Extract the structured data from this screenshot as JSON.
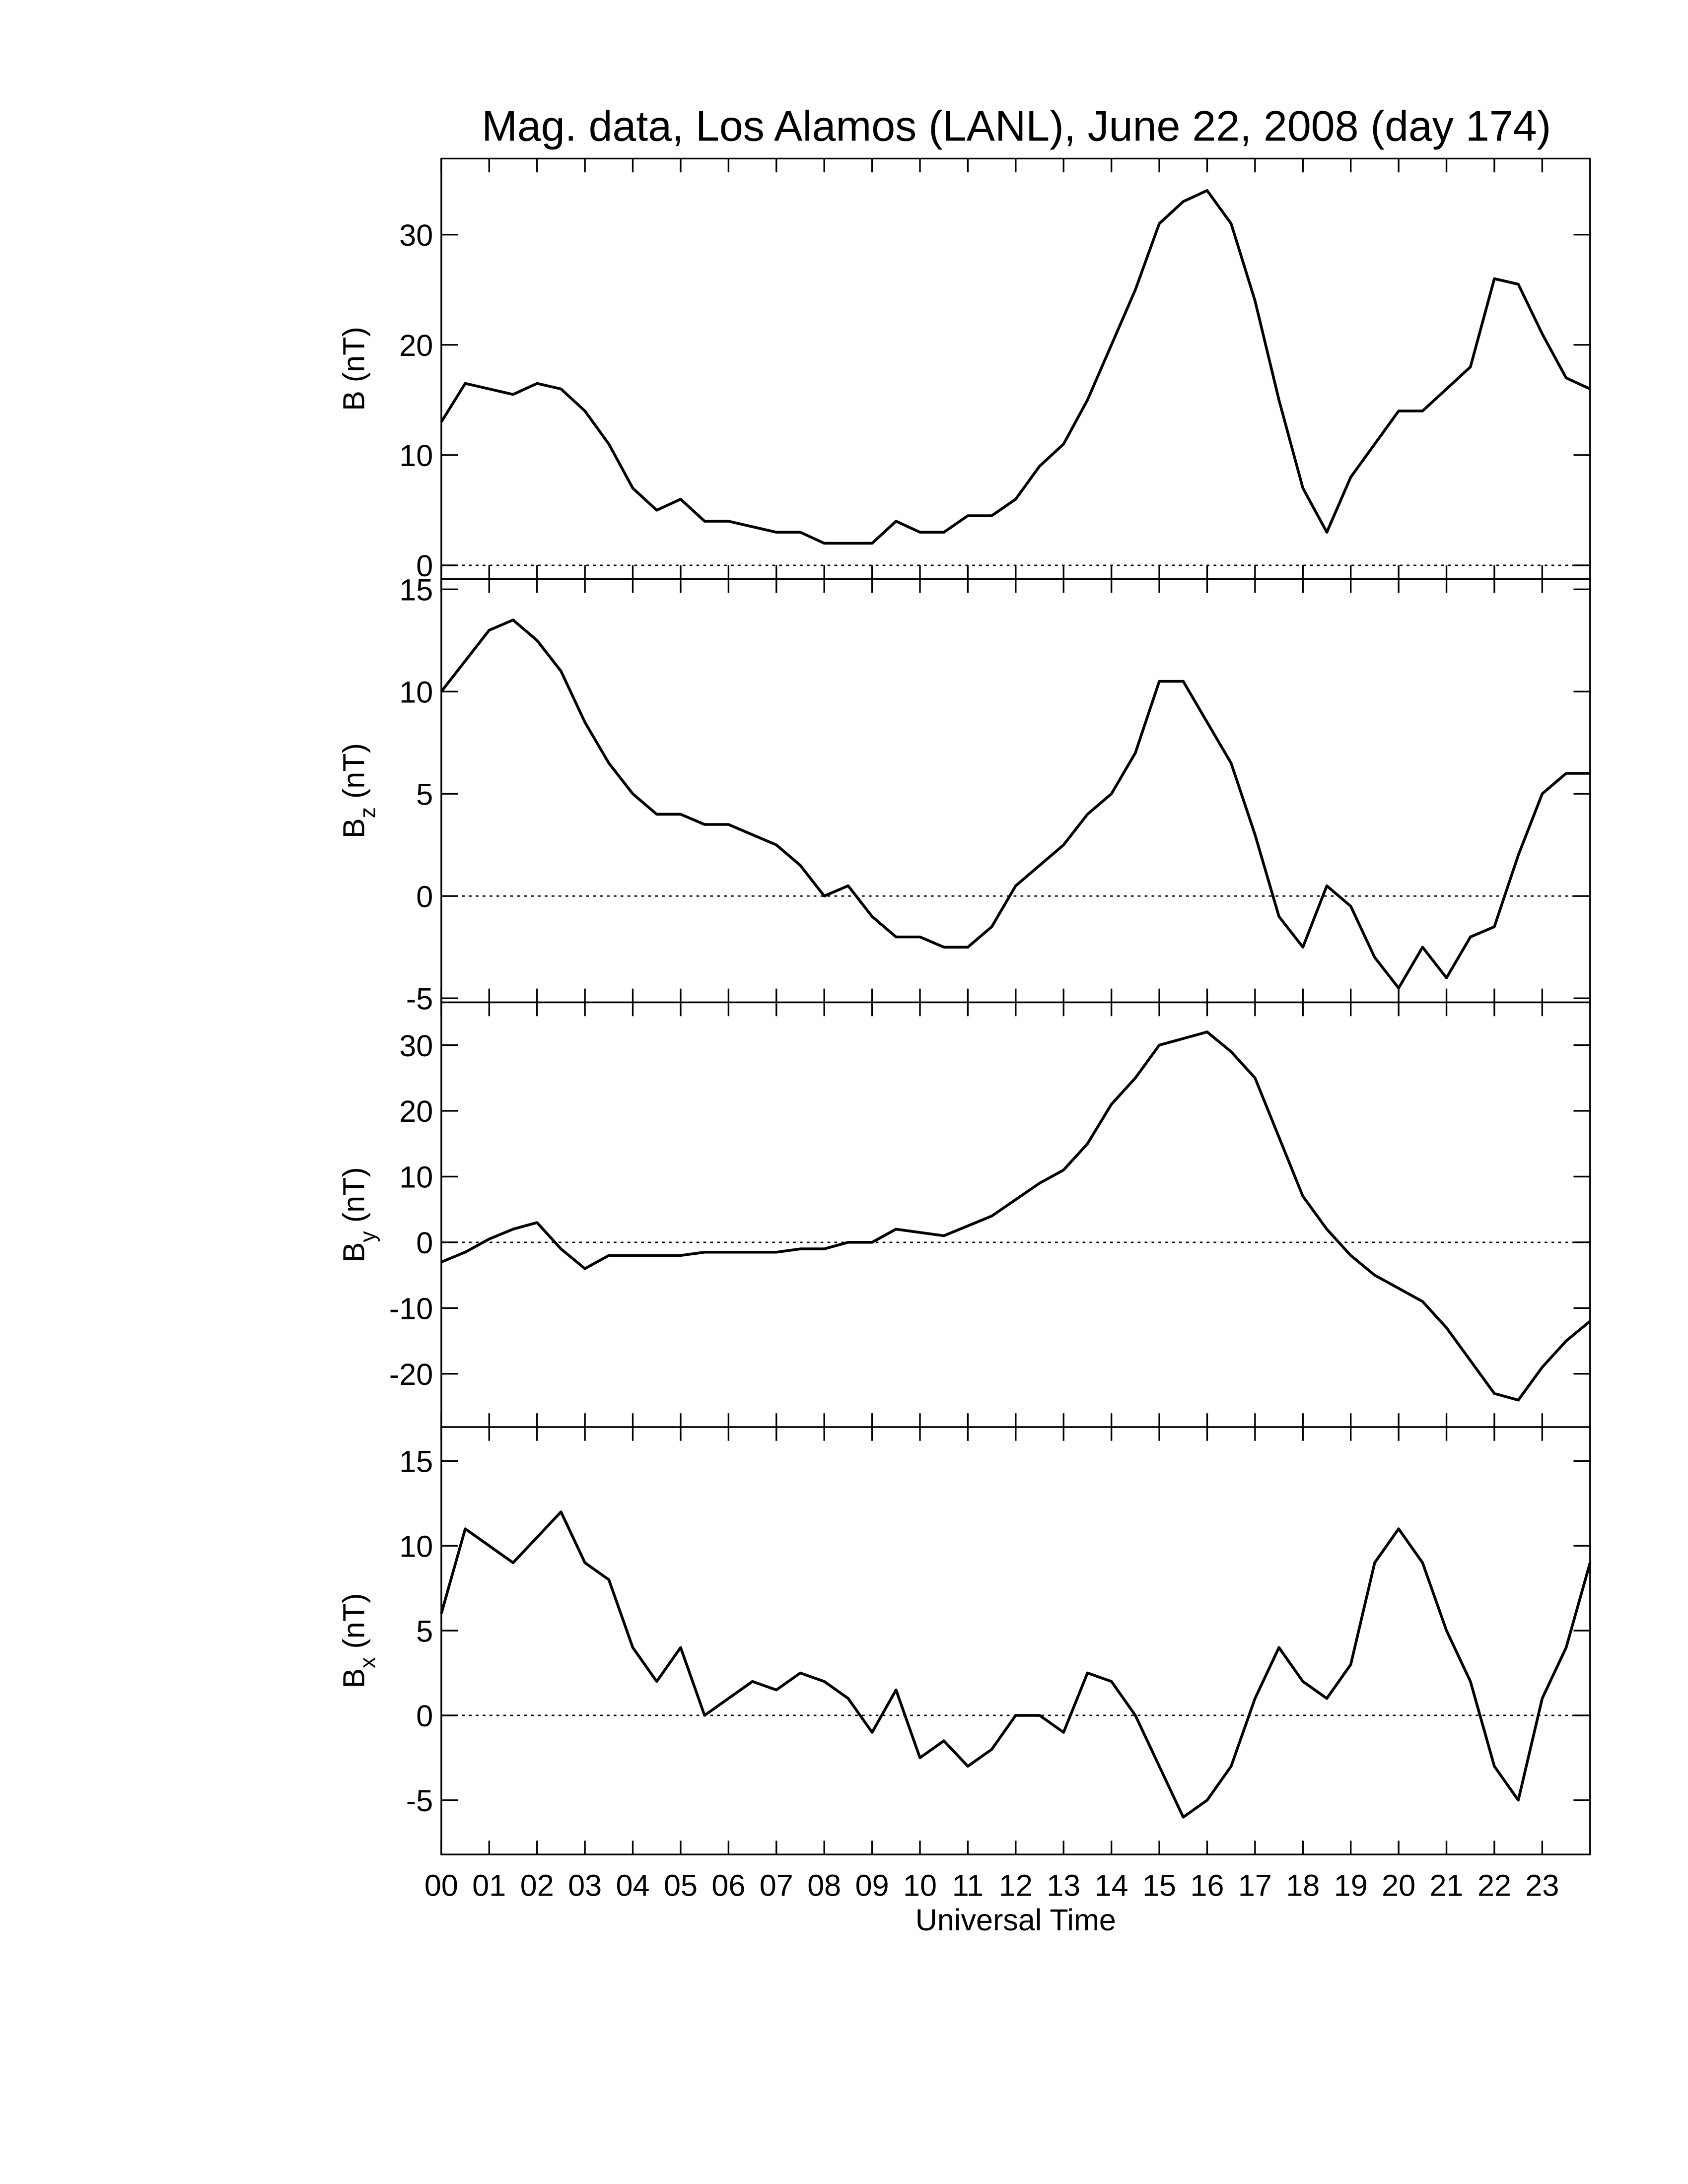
{
  "chart_data": [
    {
      "type": "line",
      "title": "Mag. data, Los Alamos (LANL), June 22, 2008 (day 174)",
      "ylabel": "B (nT)",
      "color": "#000000",
      "x": [
        0,
        0.5,
        1,
        1.5,
        2,
        2.5,
        3,
        3.5,
        4,
        4.5,
        5,
        5.5,
        6,
        6.5,
        7,
        7.5,
        8,
        8.5,
        9,
        9.5,
        10,
        10.5,
        11,
        11.5,
        12,
        12.5,
        13,
        13.5,
        14,
        14.5,
        15,
        15.5,
        16,
        16.5,
        17,
        17.5,
        18,
        18.5,
        19,
        19.5,
        20,
        20.5,
        21,
        21.5,
        22,
        22.5,
        23,
        23.5,
        24
      ],
      "values": [
        13,
        16.5,
        16,
        15.5,
        16.5,
        16,
        14,
        11,
        7,
        5,
        6,
        4,
        4,
        3.5,
        3,
        3,
        2,
        2,
        2,
        4,
        3,
        3,
        4.5,
        4.5,
        6,
        9,
        11,
        15,
        20,
        25,
        31,
        33,
        34,
        31,
        24,
        15,
        7,
        3,
        8,
        11,
        14,
        14,
        16,
        18,
        26,
        25.5,
        21,
        17,
        16
      ],
      "xlim": [
        0,
        24
      ],
      "ylim": [
        -1.25,
        36.9
      ],
      "yticks": [
        0,
        10,
        20,
        30
      ],
      "reference_line": 0
    },
    {
      "type": "line",
      "ylabel": {
        "symbol": "B",
        "subscript": "z",
        "unit": " (nT)"
      },
      "color": "#000000",
      "x": [
        0,
        0.5,
        1,
        1.5,
        2,
        2.5,
        3,
        3.5,
        4,
        4.5,
        5,
        5.5,
        6,
        6.5,
        7,
        7.5,
        8,
        8.5,
        9,
        9.5,
        10,
        10.5,
        11,
        11.5,
        12,
        12.5,
        13,
        13.5,
        14,
        14.5,
        15,
        15.5,
        16,
        16.5,
        17,
        17.5,
        18,
        18.5,
        19,
        19.5,
        20,
        20.5,
        21,
        21.5,
        22,
        22.5,
        23,
        23.5,
        24
      ],
      "values": [
        10,
        11.5,
        13,
        13.5,
        12.5,
        11,
        8.5,
        6.5,
        5,
        4,
        4,
        3.5,
        3.5,
        3,
        2.5,
        1.5,
        0,
        0.5,
        -1,
        -2,
        -2,
        -2.5,
        -2.5,
        -1.5,
        0.5,
        1.5,
        2.5,
        4,
        5,
        7,
        10.5,
        10.5,
        8.5,
        6.5,
        3,
        -1,
        -2.5,
        0.5,
        -0.5,
        -3,
        -4.5,
        -2.5,
        -4,
        -2,
        -1.5,
        2,
        5,
        6,
        6
      ],
      "xlim": [
        0,
        24
      ],
      "ylim": [
        -5.2,
        15.5
      ],
      "yticks": [
        -5,
        0,
        5,
        10,
        15
      ],
      "reference_line": 0
    },
    {
      "type": "line",
      "ylabel": {
        "symbol": "B",
        "subscript": "y",
        "unit": " (nT)"
      },
      "color": "#000000",
      "x": [
        0,
        0.5,
        1,
        1.5,
        2,
        2.5,
        3,
        3.5,
        4,
        4.5,
        5,
        5.5,
        6,
        6.5,
        7,
        7.5,
        8,
        8.5,
        9,
        9.5,
        10,
        10.5,
        11,
        11.5,
        12,
        12.5,
        13,
        13.5,
        14,
        14.5,
        15,
        15.5,
        16,
        16.5,
        17,
        17.5,
        18,
        18.5,
        19,
        19.5,
        20,
        20.5,
        21,
        21.5,
        22,
        22.5,
        23,
        23.5,
        24
      ],
      "values": [
        -3,
        -1.5,
        0.5,
        2,
        3,
        -1,
        -4,
        -2,
        -2,
        -2,
        -2,
        -1.5,
        -1.5,
        -1.5,
        -1.5,
        -1,
        -1,
        0,
        0,
        2,
        1.5,
        1,
        2.5,
        4,
        6.5,
        9,
        11,
        15,
        21,
        25,
        30,
        31,
        32,
        29,
        25,
        16,
        7,
        2,
        -2,
        -5,
        -7,
        -9,
        -13,
        -18,
        -23,
        -24,
        -19,
        -15,
        -12
      ],
      "xlim": [
        0,
        24
      ],
      "ylim": [
        -28.1,
        36.5
      ],
      "yticks": [
        -20,
        -10,
        0,
        10,
        20,
        30
      ],
      "reference_line": 0
    },
    {
      "type": "line",
      "ylabel": {
        "symbol": "B",
        "subscript": "x",
        "unit": " (nT)"
      },
      "color": "#000000",
      "xlabel": "Universal Time",
      "x": [
        0,
        0.5,
        1,
        1.5,
        2,
        2.5,
        3,
        3.5,
        4,
        4.5,
        5,
        5.5,
        6,
        6.5,
        7,
        7.5,
        8,
        8.5,
        9,
        9.5,
        10,
        10.5,
        11,
        11.5,
        12,
        12.5,
        13,
        13.5,
        14,
        14.5,
        15,
        15.5,
        16,
        16.5,
        17,
        17.5,
        18,
        18.5,
        19,
        19.5,
        20,
        20.5,
        21,
        21.5,
        22,
        22.5,
        23,
        23.5,
        24
      ],
      "values": [
        6,
        11,
        10,
        9,
        10.5,
        12,
        9,
        8,
        4,
        2,
        4,
        0,
        1,
        2,
        1.5,
        2.5,
        2,
        1,
        -1,
        1.5,
        -2.5,
        -1.5,
        -3,
        -2,
        0,
        0,
        -1,
        2.5,
        2,
        0,
        -3,
        -6,
        -5,
        -3,
        1,
        4,
        2,
        1,
        3,
        9,
        11,
        9,
        5,
        2,
        -3,
        -5,
        1,
        4,
        9
      ],
      "xlim": [
        0,
        24
      ],
      "ylim": [
        -8.2,
        17.0
      ],
      "yticks": [
        -5,
        0,
        5,
        10,
        15
      ],
      "reference_line": 0,
      "xticks": [
        {
          "value": 0,
          "label": "00"
        },
        {
          "value": 1,
          "label": "01"
        },
        {
          "value": 2,
          "label": "02"
        },
        {
          "value": 3,
          "label": "03"
        },
        {
          "value": 4,
          "label": "04"
        },
        {
          "value": 5,
          "label": "05"
        },
        {
          "value": 6,
          "label": "06"
        },
        {
          "value": 7,
          "label": "07"
        },
        {
          "value": 8,
          "label": "08"
        },
        {
          "value": 9,
          "label": "09"
        },
        {
          "value": 10,
          "label": "10"
        },
        {
          "value": 11,
          "label": "11"
        },
        {
          "value": 12,
          "label": "12"
        },
        {
          "value": 13,
          "label": "13"
        },
        {
          "value": 14,
          "label": "14"
        },
        {
          "value": 15,
          "label": "15"
        },
        {
          "value": 16,
          "label": "16"
        },
        {
          "value": 17,
          "label": "17"
        },
        {
          "value": 18,
          "label": "18"
        },
        {
          "value": 19,
          "label": "19"
        },
        {
          "value": 20,
          "label": "20"
        },
        {
          "value": 21,
          "label": "21"
        },
        {
          "value": 22,
          "label": "22"
        },
        {
          "value": 23,
          "label": "23"
        }
      ]
    }
  ]
}
